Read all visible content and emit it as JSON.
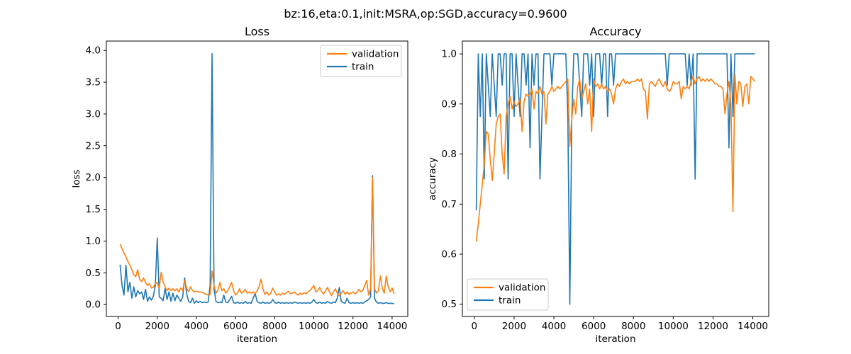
{
  "figure": {
    "suptitle": "bz:16,eta:0.1,init:MSRA,op:SGD,accuracy=0.9600",
    "background": "#ffffff"
  },
  "chart_data": [
    {
      "type": "line",
      "title": "Loss",
      "xlabel": "iteration",
      "ylabel": "loss",
      "legend_position": "upper right",
      "grid": false,
      "x_start": 100,
      "x_step": 100,
      "xlim": [
        -600,
        14800
      ],
      "ylim": [
        -0.187,
        4.147
      ],
      "xticks": [
        0,
        2000,
        4000,
        6000,
        8000,
        10000,
        12000,
        14000
      ],
      "xtick_labels": [
        "0",
        "2000",
        "4000",
        "6000",
        "8000",
        "10000",
        "12000",
        "14000"
      ],
      "yticks": [
        0.0,
        0.5,
        1.0,
        1.5,
        2.0,
        2.5,
        3.0,
        3.5,
        4.0
      ],
      "ytick_labels": [
        "0.0",
        "0.5",
        "1.0",
        "1.5",
        "2.0",
        "2.5",
        "3.0",
        "3.5",
        "4.0"
      ],
      "series": [
        {
          "name": "validation",
          "color": "#ff7f0e",
          "values": [
            0.95,
            0.88,
            0.81,
            0.75,
            0.68,
            0.62,
            0.55,
            0.47,
            0.44,
            0.55,
            0.4,
            0.36,
            0.42,
            0.35,
            0.3,
            0.33,
            0.26,
            0.27,
            0.33,
            0.35,
            0.25,
            0.51,
            0.36,
            0.28,
            0.22,
            0.26,
            0.22,
            0.25,
            0.22,
            0.25,
            0.2,
            0.26,
            0.22,
            0.38,
            0.26,
            0.2,
            0.28,
            0.22,
            0.2,
            0.21,
            0.2,
            0.2,
            0.19,
            0.18,
            0.16,
            0.15,
            0.16,
            0.53,
            0.3,
            0.18,
            0.23,
            0.35,
            0.22,
            0.25,
            0.18,
            0.22,
            0.28,
            0.35,
            0.22,
            0.15,
            0.18,
            0.25,
            0.18,
            0.2,
            0.24,
            0.18,
            0.2,
            0.18,
            0.2,
            0.17,
            0.22,
            0.28,
            0.4,
            0.25,
            0.16,
            0.2,
            0.15,
            0.18,
            0.26,
            0.2,
            0.15,
            0.17,
            0.15,
            0.18,
            0.16,
            0.19,
            0.21,
            0.17,
            0.18,
            0.2,
            0.17,
            0.15,
            0.18,
            0.16,
            0.19,
            0.17,
            0.2,
            0.22,
            0.26,
            0.3,
            0.2,
            0.22,
            0.27,
            0.2,
            0.17,
            0.22,
            0.27,
            0.2,
            0.14,
            0.2,
            0.25,
            0.18,
            0.14,
            0.18,
            0.22,
            0.16,
            0.2,
            0.16,
            0.18,
            0.2,
            0.17,
            0.19,
            0.24,
            0.2,
            0.22,
            0.3,
            0.38,
            0.15,
            0.25,
            2.0,
            0.25,
            0.18,
            0.22,
            0.45,
            0.25,
            0.18,
            0.45,
            0.28,
            0.2,
            0.26,
            0.17
          ]
        },
        {
          "name": "train",
          "color": "#1f77b4",
          "values": [
            0.63,
            0.3,
            0.15,
            0.62,
            0.2,
            0.35,
            0.1,
            0.28,
            0.12,
            0.22,
            0.17,
            0.2,
            0.08,
            0.24,
            0.05,
            0.12,
            0.07,
            0.13,
            0.3,
            1.05,
            0.12,
            0.1,
            0.06,
            0.25,
            0.08,
            0.2,
            0.05,
            0.18,
            0.06,
            0.15,
            0.1,
            0.05,
            0.12,
            0.42,
            0.18,
            0.05,
            0.03,
            0.1,
            0.02,
            0.06,
            0.03,
            0.05,
            0.03,
            0.04,
            0.03,
            0.04,
            0.3,
            3.95,
            0.25,
            0.05,
            0.03,
            0.04,
            0.03,
            0.15,
            0.04,
            0.03,
            0.08,
            0.13,
            0.03,
            0.02,
            0.04,
            0.02,
            0.03,
            0.02,
            0.05,
            0.02,
            0.03,
            0.02,
            0.1,
            0.18,
            0.05,
            0.03,
            0.02,
            0.04,
            0.02,
            0.03,
            0.02,
            0.03,
            0.08,
            0.03,
            0.02,
            0.04,
            0.02,
            0.03,
            0.02,
            0.03,
            0.02,
            0.03,
            0.02,
            0.04,
            0.03,
            0.02,
            0.03,
            0.02,
            0.03,
            0.02,
            0.03,
            0.02,
            0.04,
            0.08,
            0.03,
            0.02,
            0.04,
            0.02,
            0.03,
            0.02,
            0.05,
            0.03,
            0.02,
            0.04,
            0.03,
            0.1,
            0.27,
            0.05,
            0.03,
            0.02,
            0.1,
            0.03,
            0.02,
            0.03,
            0.02,
            0.03,
            0.02,
            0.03,
            0.02,
            0.04,
            0.06,
            0.08,
            0.12,
            2.03,
            0.1,
            0.04,
            0.02,
            0.03,
            0.02,
            0.02,
            0.03,
            0.02,
            0.02,
            0.02,
            0.01
          ]
        }
      ]
    },
    {
      "type": "line",
      "title": "Accuracy",
      "xlabel": "iteration",
      "ylabel": "accuracy",
      "legend_position": "lower left",
      "grid": false,
      "x_start": 100,
      "x_step": 100,
      "xlim": [
        -600,
        14800
      ],
      "ylim": [
        0.4756,
        1.0256
      ],
      "xticks": [
        0,
        2000,
        4000,
        6000,
        8000,
        10000,
        12000,
        14000
      ],
      "xtick_labels": [
        "0",
        "2000",
        "4000",
        "6000",
        "8000",
        "10000",
        "12000",
        "14000"
      ],
      "yticks": [
        0.5,
        0.6,
        0.7,
        0.8,
        0.9,
        1.0
      ],
      "ytick_labels": [
        "0.5",
        "0.6",
        "0.7",
        "0.8",
        "0.9",
        "1.0"
      ],
      "series": [
        {
          "name": "validation",
          "color": "#ff7f0e",
          "values": [
            0.625,
            0.66,
            0.7,
            0.74,
            0.78,
            0.845,
            0.84,
            0.79,
            0.747,
            0.8,
            0.86,
            0.875,
            0.88,
            0.8,
            0.76,
            0.875,
            0.9,
            0.915,
            0.89,
            0.905,
            0.895,
            0.9,
            0.91,
            0.845,
            0.905,
            0.92,
            0.915,
            0.92,
            0.93,
            0.89,
            0.925,
            0.92,
            0.935,
            0.92,
            0.925,
            0.86,
            0.92,
            0.925,
            0.935,
            0.925,
            0.93,
            0.935,
            0.93,
            0.935,
            0.94,
            0.945,
            0.95,
            0.815,
            0.87,
            0.91,
            0.88,
            0.935,
            0.95,
            0.91,
            0.925,
            0.94,
            0.9,
            0.93,
            0.845,
            0.95,
            0.935,
            0.94,
            0.93,
            0.94,
            0.93,
            0.935,
            0.925,
            0.93,
            0.92,
            0.9,
            0.93,
            0.94,
            0.935,
            0.945,
            0.95,
            0.94,
            0.945,
            0.94,
            0.945,
            0.945,
            0.945,
            0.95,
            0.945,
            0.95,
            0.93,
            0.925,
            0.87,
            0.94,
            0.945,
            0.94,
            0.935,
            0.945,
            0.95,
            0.94,
            0.935,
            0.945,
            0.93,
            0.925,
            0.93,
            0.945,
            0.94,
            0.94,
            0.945,
            0.91,
            0.935,
            0.93,
            0.935,
            0.93,
            0.945,
            0.955,
            0.94,
            0.95,
            0.955,
            0.945,
            0.95,
            0.945,
            0.95,
            0.945,
            0.95,
            0.945,
            0.94,
            0.94,
            0.935,
            0.935,
            0.93,
            0.88,
            0.92,
            0.945,
            0.9,
            0.685,
            0.96,
            0.9,
            0.945,
            0.94,
            0.895,
            0.935,
            0.94,
            0.9,
            0.955,
            0.95,
            0.945
          ]
        },
        {
          "name": "train",
          "color": "#1f77b4",
          "values": [
            0.6875,
            1.0,
            0.875,
            1.0,
            0.75,
            1.0,
            0.9375,
            0.875,
            1.0,
            0.9375,
            0.875,
            1.0,
            1.0,
            0.9375,
            1.0,
            1.0,
            0.75,
            1.0,
            1.0,
            0.875,
            1.0,
            0.9375,
            0.875,
            1.0,
            1.0,
            0.9375,
            1.0,
            0.8125,
            1.0,
            0.9375,
            1.0,
            1.0,
            0.75,
            0.875,
            1.0,
            1.0,
            1.0,
            1.0,
            0.9375,
            1.0,
            1.0,
            1.0,
            1.0,
            1.0,
            1.0,
            1.0,
            0.875,
            0.5,
            0.875,
            1.0,
            1.0,
            1.0,
            0.9375,
            0.875,
            1.0,
            1.0,
            1.0,
            0.9375,
            1.0,
            0.875,
            1.0,
            1.0,
            1.0,
            0.9375,
            1.0,
            1.0,
            0.875,
            1.0,
            1.0,
            0.9375,
            1.0,
            1.0,
            1.0,
            1.0,
            1.0,
            1.0,
            1.0,
            1.0,
            1.0,
            1.0,
            1.0,
            1.0,
            1.0,
            1.0,
            1.0,
            1.0,
            1.0,
            1.0,
            1.0,
            1.0,
            1.0,
            1.0,
            1.0,
            1.0,
            1.0,
            1.0,
            0.9375,
            1.0,
            1.0,
            1.0,
            1.0,
            1.0,
            1.0,
            1.0,
            1.0,
            1.0,
            0.9375,
            1.0,
            0.9375,
            1.0,
            0.75,
            1.0,
            1.0,
            1.0,
            1.0,
            1.0,
            1.0,
            1.0,
            1.0,
            1.0,
            1.0,
            1.0,
            1.0,
            1.0,
            1.0,
            1.0,
            1.0,
            0.8125,
            1.0,
            0.875,
            1.0,
            1.0,
            1.0,
            1.0,
            1.0,
            1.0,
            1.0,
            1.0,
            1.0,
            1.0,
            1.0
          ]
        }
      ]
    }
  ]
}
